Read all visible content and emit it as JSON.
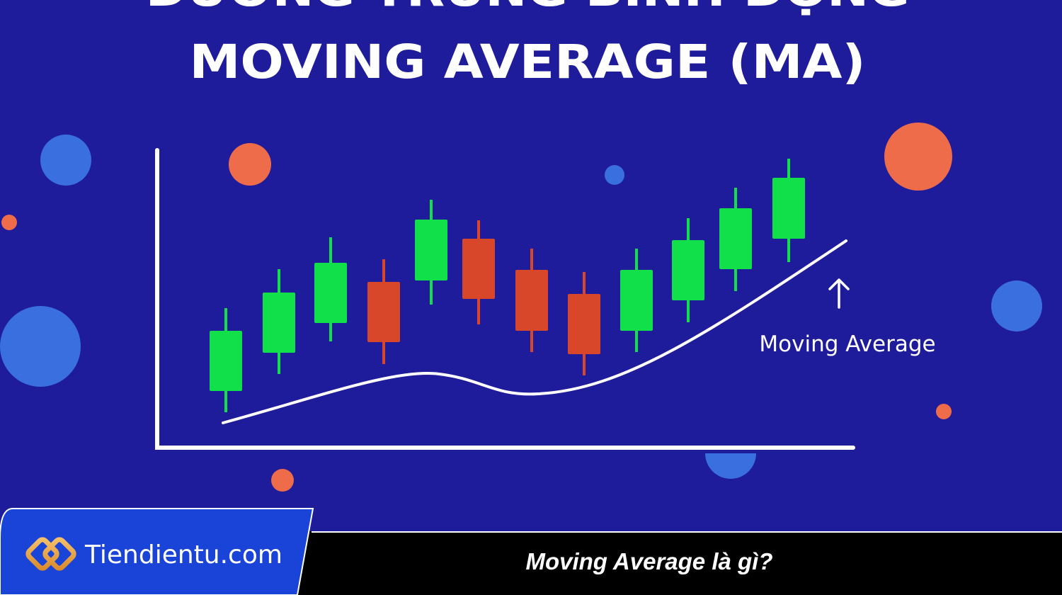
{
  "header": {
    "top_line": "ĐƯỜNG TRUNG BÌNH ĐỘNG",
    "title": "MOVING AVERAGE (MA)"
  },
  "illustration": {
    "line_label": "Moving Average"
  },
  "footer": {
    "brand": "Tiendientu.com",
    "caption": "Moving Average là gì?"
  }
}
